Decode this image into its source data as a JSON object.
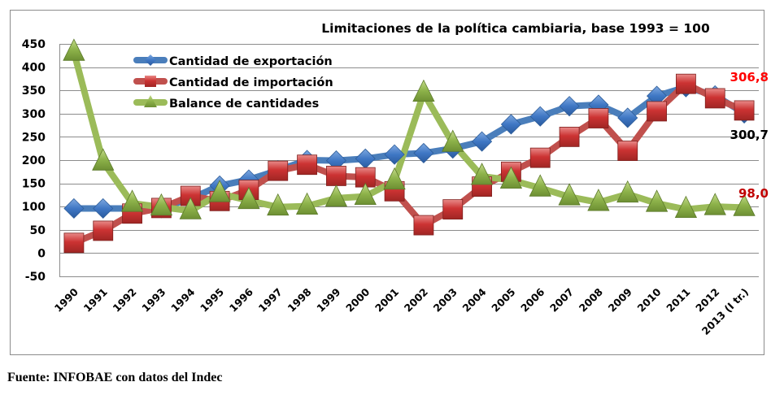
{
  "chart_data": {
    "type": "line",
    "title": "Limitaciones de la política cambiaria, base 1993 = 100",
    "xlabel": "",
    "ylabel": "",
    "ylim": [
      -50,
      450
    ],
    "yticks": [
      450,
      400,
      350,
      300,
      250,
      200,
      150,
      100,
      50,
      0,
      -50
    ],
    "ytick_labels": [
      "450",
      "400",
      "350",
      "300",
      "250",
      "200",
      "150",
      "100",
      "50",
      "0",
      "-50"
    ],
    "grid": true,
    "legend_position": "top-left",
    "categories": [
      "1990",
      "1991",
      "1992",
      "1993",
      "1994",
      "1995",
      "1996",
      "1997",
      "1998",
      "1999",
      "2000",
      "2001",
      "2002",
      "2003",
      "2004",
      "2005",
      "2006",
      "2007",
      "2008",
      "2009",
      "2010",
      "2011",
      "2012",
      "2013 (I tr.)"
    ],
    "series": [
      {
        "name": "Cantidad de exportación",
        "color": "#4a7ebb",
        "marker": "diamond",
        "values": [
          96,
          96,
          96,
          97,
          117,
          145,
          158,
          178,
          200,
          199,
          203,
          212,
          215,
          225,
          240,
          277,
          294,
          316,
          319,
          291,
          338,
          357,
          339,
          300.7
        ]
      },
      {
        "name": "Cantidad de importación",
        "color": "#c0504d",
        "marker": "square",
        "values": [
          22,
          48,
          85,
          97,
          123,
          112,
          136,
          177,
          190,
          166,
          163,
          133,
          60,
          94,
          143,
          175,
          205,
          250,
          290,
          220,
          305,
          364,
          333,
          306.8
        ]
      },
      {
        "name": "Balance de cantidades",
        "color": "#9bbb59",
        "marker": "triangle",
        "values": [
          432,
          196,
          107,
          99,
          91,
          128,
          113,
          99,
          101,
          118,
          122,
          155,
          344,
          236,
          165,
          157,
          140,
          121,
          109,
          127,
          107,
          94,
          100,
          98.0
        ]
      }
    ],
    "annotations": [
      {
        "text": "306,8",
        "color": "#ff0000",
        "series": "Cantidad de importación",
        "category": "2013 (I tr.)"
      },
      {
        "text": "300,7",
        "color": "#000000",
        "series": "Cantidad de exportación",
        "category": "2013 (I tr.)"
      },
      {
        "text": "98,0",
        "color": "#c00000",
        "series": "Balance de cantidades",
        "category": "2013 (I tr.)"
      }
    ]
  },
  "source_note": "Fuente: INFOBAE con datos del Indec"
}
